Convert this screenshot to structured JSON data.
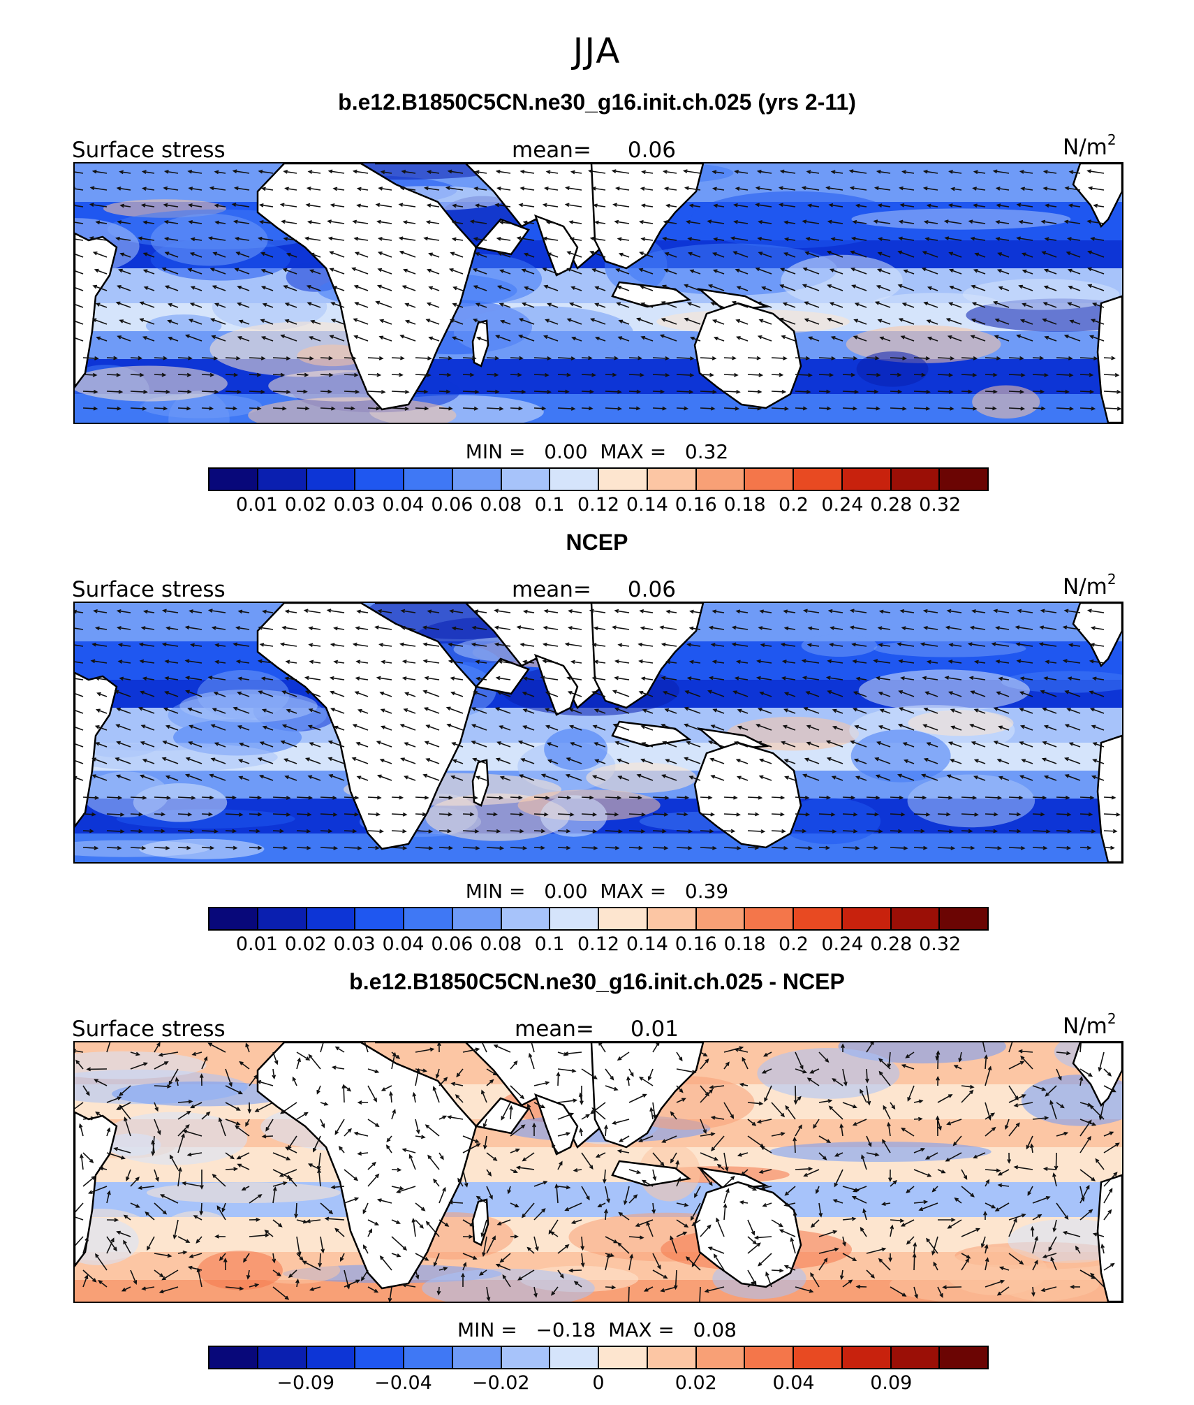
{
  "title": "JJA",
  "panels": [
    {
      "title": "b.e12.B1850C5CN.ne30_g16.init.ch.025 (yrs 2-11)",
      "left_label": "Surface stress",
      "mean_label": "mean=",
      "mean_value": "0.06",
      "units": "N/m",
      "units_sup": "2",
      "min_label": "MIN =",
      "min_value": "0.00",
      "max_label": "MAX =",
      "max_value": "0.32",
      "colorbar_ticks": [
        "0.01",
        "0.02",
        "0.03",
        "0.04",
        "0.06",
        "0.08",
        "0.1",
        "0.12",
        "0.14",
        "0.16",
        "0.18",
        "0.2",
        "0.24",
        "0.28",
        "0.32"
      ],
      "palette": "magnitude"
    },
    {
      "title": "NCEP",
      "left_label": "Surface stress",
      "mean_label": "mean=",
      "mean_value": "0.06",
      "units": "N/m",
      "units_sup": "2",
      "min_label": "MIN =",
      "min_value": "0.00",
      "max_label": "MAX =",
      "max_value": "0.39",
      "colorbar_ticks": [
        "0.01",
        "0.02",
        "0.03",
        "0.04",
        "0.06",
        "0.08",
        "0.1",
        "0.12",
        "0.14",
        "0.16",
        "0.18",
        "0.2",
        "0.24",
        "0.28",
        "0.32"
      ],
      "palette": "magnitude"
    },
    {
      "title": "b.e12.B1850C5CN.ne30_g16.init.ch.025 - NCEP",
      "left_label": "Surface stress",
      "mean_label": "mean=",
      "mean_value": "0.01",
      "units": "N/m",
      "units_sup": "2",
      "min_label": "MIN =",
      "min_value": "−0.18",
      "max_label": "MAX =",
      "max_value": "0.08",
      "colorbar_ticks": [
        "−0.09",
        "−0.04",
        "−0.02",
        "0",
        "0.02",
        "0.04",
        "0.09"
      ],
      "palette": "difference"
    }
  ],
  "colors": {
    "scale": [
      "#08087a",
      "#0a1fb0",
      "#0d35d6",
      "#1f57f0",
      "#3f78f5",
      "#6f9bf7",
      "#a7c3fa",
      "#d5e4fb",
      "#fde5cf",
      "#fcc6a4",
      "#f8a076",
      "#f4764a",
      "#e84a22",
      "#c8220d",
      "#9b0f06",
      "#6b0503"
    ],
    "land": "#ffffff",
    "coast": "#000000",
    "vector": "#111111"
  }
}
